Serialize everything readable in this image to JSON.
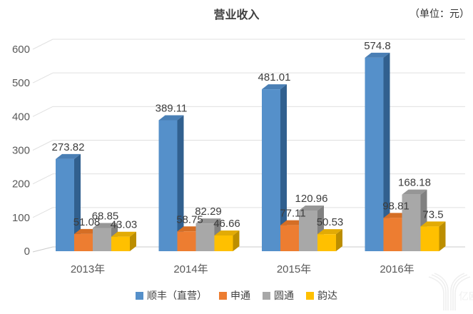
{
  "header": {
    "title": "营业收入",
    "unit": "（单位：元）"
  },
  "chart_data": {
    "type": "bar",
    "style": "3d-clustered-column",
    "title": "营业收入",
    "unit_label": "（单位：元）",
    "categories": [
      "2013年",
      "2014年",
      "2015年",
      "2016年"
    ],
    "series": [
      {
        "name": "顺丰（直营）",
        "colors": {
          "front": "#5590CA",
          "top": "#4A7FB5",
          "side": "#31608F"
        },
        "values": [
          273.82,
          389.11,
          481.01,
          574.8
        ]
      },
      {
        "name": "申通",
        "colors": {
          "front": "#ED7D31",
          "top": "#D56E25",
          "side": "#AE5A21"
        },
        "values": [
          51.08,
          58.75,
          77.11,
          98.81
        ]
      },
      {
        "name": "圆通",
        "colors": {
          "front": "#A8A8A8",
          "top": "#969696",
          "side": "#818181"
        },
        "values": [
          68.85,
          82.29,
          120.96,
          168.18
        ]
      },
      {
        "name": "韵达",
        "colors": {
          "front": "#FFC000",
          "top": "#E2AB05",
          "side": "#BC8E00"
        },
        "values": [
          43.03,
          46.66,
          50.53,
          73.5
        ]
      }
    ],
    "y_ticks": [
      0,
      100,
      200,
      300,
      400,
      500,
      600
    ],
    "ylim": [
      0,
      600
    ],
    "grid": true,
    "value_labels": true,
    "legend_position": "bottom",
    "axis_text_color": "#595959",
    "value_label_color": "#3c3c3c",
    "gridline_color": "#e0e0e0",
    "floor_line_color": "#cbcbcb"
  },
  "watermark": {
    "text": "亿欧"
  }
}
